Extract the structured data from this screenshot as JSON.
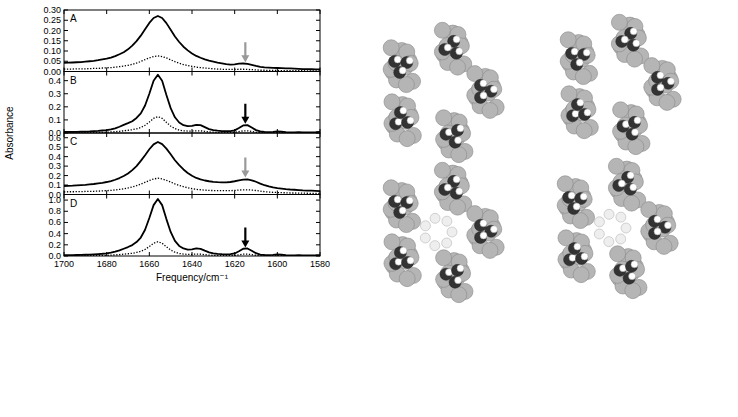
{
  "figure": {
    "ylabel": "Absorbance"
  },
  "chart_data": [
    {
      "type": "line",
      "title": "A",
      "x": [
        1700,
        1698,
        1696,
        1694,
        1692,
        1690,
        1688,
        1686,
        1684,
        1682,
        1680,
        1678,
        1676,
        1674,
        1672,
        1670,
        1668,
        1666,
        1664,
        1662,
        1660,
        1658,
        1656,
        1654,
        1652,
        1650,
        1648,
        1646,
        1644,
        1642,
        1640,
        1638,
        1636,
        1634,
        1632,
        1630,
        1628,
        1626,
        1624,
        1622,
        1620,
        1618,
        1616,
        1614,
        1612,
        1610,
        1608,
        1606,
        1604,
        1602,
        1600,
        1598,
        1596,
        1594,
        1592,
        1590,
        1588,
        1586,
        1584,
        1582,
        1580
      ],
      "xlim": [
        1700,
        1580
      ],
      "xticks": [
        1700,
        1680,
        1660,
        1640,
        1620,
        1600,
        1580
      ],
      "ylim": [
        0,
        0.3
      ],
      "yticks": [
        {
          "value": 0,
          "label": "0.00"
        },
        0.05,
        {
          "value": 0.1,
          "label": "0.10"
        },
        0.15,
        {
          "value": 0.2,
          "label": "0.20"
        },
        0.25,
        {
          "value": 0.3,
          "label": "0.30"
        }
      ],
      "tick_labels": "y",
      "series": [
        {
          "color": "#000000",
          "line_style": "solid",
          "values": [
            0.042,
            0.043,
            0.044,
            0.045,
            0.046,
            0.048,
            0.05,
            0.052,
            0.055,
            0.059,
            0.063,
            0.068,
            0.075,
            0.084,
            0.094,
            0.108,
            0.126,
            0.148,
            0.175,
            0.206,
            0.237,
            0.261,
            0.271,
            0.261,
            0.236,
            0.204,
            0.171,
            0.144,
            0.121,
            0.103,
            0.088,
            0.076,
            0.067,
            0.059,
            0.053,
            0.048,
            0.043,
            0.04,
            0.036,
            0.034,
            0.035,
            0.038,
            0.039,
            0.037,
            0.032,
            0.027,
            0.023,
            0.02,
            0.019,
            0.018,
            0.017,
            0.016,
            0.015,
            0.015,
            0.014,
            0.013,
            0.012,
            0.012,
            0.011,
            0.01,
            0.01
          ]
        },
        {
          "color": "#000000",
          "line_style": "dotted",
          "values": [
            0.012,
            0.012,
            0.012,
            0.013,
            0.013,
            0.013,
            0.014,
            0.015,
            0.015,
            0.017,
            0.018,
            0.019,
            0.021,
            0.024,
            0.026,
            0.03,
            0.035,
            0.041,
            0.049,
            0.058,
            0.066,
            0.073,
            0.076,
            0.073,
            0.066,
            0.057,
            0.048,
            0.04,
            0.034,
            0.029,
            0.025,
            0.021,
            0.019,
            0.017,
            0.015,
            0.013,
            0.012,
            0.011,
            0.01,
            0.01,
            0.01,
            0.011,
            0.011,
            0.01,
            0.009,
            0.008,
            0.006,
            0.006,
            0.005,
            0.005,
            0.005,
            0.004,
            0.004,
            0.004,
            0.004,
            0.004,
            0.004,
            0.003,
            0.003,
            0.003,
            0.003
          ]
        }
      ],
      "arrow": {
        "x": 1615,
        "y": 0.045,
        "color": "#999999"
      }
    },
    {
      "type": "line",
      "title": "B",
      "x": [
        1700,
        1698,
        1696,
        1694,
        1692,
        1690,
        1688,
        1686,
        1684,
        1682,
        1680,
        1678,
        1676,
        1674,
        1672,
        1670,
        1668,
        1666,
        1664,
        1662,
        1660,
        1658,
        1656,
        1654,
        1652,
        1650,
        1648,
        1646,
        1644,
        1642,
        1640,
        1638,
        1636,
        1634,
        1632,
        1630,
        1628,
        1626,
        1624,
        1622,
        1620,
        1618,
        1616,
        1614,
        1612,
        1610,
        1608,
        1606,
        1604,
        1602,
        1600,
        1598,
        1596,
        1594,
        1592,
        1590,
        1588,
        1586,
        1584,
        1582,
        1580
      ],
      "xlim": [
        1700,
        1580
      ],
      "xticks": [
        1700,
        1680,
        1660,
        1640,
        1620,
        1600,
        1580
      ],
      "ylim": [
        0,
        0.47
      ],
      "yticks": [
        {
          "value": 0,
          "label": "0.0"
        },
        0.1,
        0.2,
        0.3,
        0.4
      ],
      "tick_labels": "y",
      "series": [
        {
          "color": "#000000",
          "line_style": "solid",
          "values": [
            0.008,
            0.008,
            0.009,
            0.009,
            0.01,
            0.011,
            0.012,
            0.014,
            0.016,
            0.019,
            0.022,
            0.028,
            0.036,
            0.048,
            0.062,
            0.075,
            0.09,
            0.115,
            0.15,
            0.21,
            0.3,
            0.4,
            0.445,
            0.4,
            0.29,
            0.19,
            0.12,
            0.08,
            0.06,
            0.052,
            0.055,
            0.062,
            0.06,
            0.045,
            0.03,
            0.022,
            0.018,
            0.015,
            0.014,
            0.015,
            0.02,
            0.038,
            0.058,
            0.06,
            0.042,
            0.022,
            0.012,
            0.008,
            0.007,
            0.009,
            0.012,
            0.01,
            0.006,
            0.005,
            0.005,
            0.006,
            0.005,
            0.004,
            0.005,
            0.006,
            0.008
          ]
        },
        {
          "color": "#000000",
          "line_style": "dotted",
          "values": [
            0.002,
            0.002,
            0.003,
            0.003,
            0.003,
            0.003,
            0.003,
            0.004,
            0.004,
            0.005,
            0.006,
            0.008,
            0.01,
            0.013,
            0.017,
            0.021,
            0.025,
            0.032,
            0.042,
            0.059,
            0.084,
            0.112,
            0.125,
            0.112,
            0.081,
            0.053,
            0.034,
            0.022,
            0.017,
            0.015,
            0.015,
            0.017,
            0.017,
            0.013,
            0.008,
            0.006,
            0.005,
            0.004,
            0.004,
            0.004,
            0.006,
            0.011,
            0.016,
            0.017,
            0.012,
            0.006,
            0.003,
            0.002,
            0.002,
            0.003,
            0.003,
            0.003,
            0.002,
            0.001,
            0.001,
            0.001,
            0.001,
            0.001,
            0.001,
            0.002,
            0.002
          ]
        }
      ],
      "arrow": {
        "x": 1615,
        "y": 0.07,
        "color": "#000000"
      }
    },
    {
      "type": "line",
      "title": "C",
      "x": [
        1700,
        1698,
        1696,
        1694,
        1692,
        1690,
        1688,
        1686,
        1684,
        1682,
        1680,
        1678,
        1676,
        1674,
        1672,
        1670,
        1668,
        1666,
        1664,
        1662,
        1660,
        1658,
        1656,
        1654,
        1652,
        1650,
        1648,
        1646,
        1644,
        1642,
        1640,
        1638,
        1636,
        1634,
        1632,
        1630,
        1628,
        1626,
        1624,
        1622,
        1620,
        1618,
        1616,
        1614,
        1612,
        1610,
        1608,
        1606,
        1604,
        1602,
        1600,
        1598,
        1596,
        1594,
        1592,
        1590,
        1588,
        1586,
        1584,
        1582,
        1580
      ],
      "xlim": [
        1700,
        1580
      ],
      "xticks": [
        1700,
        1680,
        1660,
        1640,
        1620,
        1600,
        1580
      ],
      "ylim": [
        0,
        0.65
      ],
      "yticks": [
        {
          "value": 0,
          "label": "0.0"
        },
        0.1,
        0.2,
        0.3,
        0.4,
        0.5,
        0.6
      ],
      "tick_labels": "y",
      "series": [
        {
          "color": "#000000",
          "line_style": "solid",
          "values": [
            0.09,
            0.092,
            0.094,
            0.097,
            0.099,
            0.102,
            0.106,
            0.111,
            0.117,
            0.124,
            0.132,
            0.142,
            0.156,
            0.174,
            0.195,
            0.222,
            0.258,
            0.3,
            0.355,
            0.415,
            0.478,
            0.53,
            0.555,
            0.533,
            0.485,
            0.425,
            0.362,
            0.31,
            0.265,
            0.228,
            0.198,
            0.175,
            0.16,
            0.148,
            0.14,
            0.134,
            0.13,
            0.128,
            0.128,
            0.132,
            0.14,
            0.15,
            0.158,
            0.16,
            0.15,
            0.135,
            0.115,
            0.098,
            0.085,
            0.075,
            0.068,
            0.062,
            0.057,
            0.053,
            0.05,
            0.047,
            0.044,
            0.042,
            0.04,
            0.038,
            0.036
          ]
        },
        {
          "color": "#000000",
          "line_style": "dotted",
          "values": [
            0.028,
            0.029,
            0.029,
            0.03,
            0.031,
            0.032,
            0.033,
            0.034,
            0.036,
            0.038,
            0.041,
            0.044,
            0.048,
            0.054,
            0.06,
            0.069,
            0.08,
            0.093,
            0.11,
            0.129,
            0.148,
            0.164,
            0.172,
            0.165,
            0.15,
            0.132,
            0.112,
            0.096,
            0.082,
            0.071,
            0.061,
            0.054,
            0.05,
            0.046,
            0.043,
            0.042,
            0.04,
            0.04,
            0.04,
            0.041,
            0.043,
            0.047,
            0.049,
            0.05,
            0.047,
            0.042,
            0.036,
            0.03,
            0.026,
            0.023,
            0.021,
            0.019,
            0.018,
            0.016,
            0.016,
            0.015,
            0.014,
            0.013,
            0.012,
            0.012,
            0.011
          ]
        }
      ],
      "arrow": {
        "x": 1615,
        "y": 0.18,
        "color": "#999999"
      }
    },
    {
      "type": "line",
      "title": "D",
      "x": [
        1700,
        1698,
        1696,
        1694,
        1692,
        1690,
        1688,
        1686,
        1684,
        1682,
        1680,
        1678,
        1676,
        1674,
        1672,
        1670,
        1668,
        1666,
        1664,
        1662,
        1660,
        1658,
        1656,
        1654,
        1652,
        1650,
        1648,
        1646,
        1644,
        1642,
        1640,
        1638,
        1636,
        1634,
        1632,
        1630,
        1628,
        1626,
        1624,
        1622,
        1620,
        1618,
        1616,
        1614,
        1612,
        1610,
        1608,
        1606,
        1604,
        1602,
        1600,
        1598,
        1596,
        1594,
        1592,
        1590,
        1588,
        1586,
        1584,
        1582,
        1580
      ],
      "xlim": [
        1700,
        1580
      ],
      "xticks": [
        1700,
        1680,
        1660,
        1640,
        1620,
        1600,
        1580
      ],
      "xlabel": "Frequency/cm⁻¹",
      "ylim": [
        0,
        1.1
      ],
      "yticks": [
        {
          "value": 0,
          "label": "0.0"
        },
        0.2,
        0.4,
        0.6,
        0.8,
        {
          "value": 1,
          "label": "1.0"
        }
      ],
      "series": [
        {
          "color": "#000000",
          "line_style": "solid",
          "values": [
            0.015,
            0.016,
            0.017,
            0.018,
            0.02,
            0.022,
            0.025,
            0.029,
            0.034,
            0.04,
            0.048,
            0.06,
            0.078,
            0.1,
            0.13,
            0.16,
            0.195,
            0.25,
            0.33,
            0.47,
            0.68,
            0.91,
            1.02,
            0.91,
            0.66,
            0.43,
            0.27,
            0.18,
            0.135,
            0.115,
            0.12,
            0.135,
            0.128,
            0.095,
            0.065,
            0.048,
            0.038,
            0.032,
            0.03,
            0.033,
            0.045,
            0.085,
            0.13,
            0.135,
            0.095,
            0.05,
            0.026,
            0.018,
            0.016,
            0.02,
            0.028,
            0.022,
            0.014,
            0.011,
            0.011,
            0.013,
            0.011,
            0.009,
            0.011,
            0.013,
            0.017
          ]
        },
        {
          "color": "#000000",
          "line_style": "dotted",
          "values": [
            0.004,
            0.004,
            0.004,
            0.005,
            0.005,
            0.006,
            0.006,
            0.007,
            0.009,
            0.01,
            0.012,
            0.015,
            0.02,
            0.025,
            0.033,
            0.04,
            0.049,
            0.063,
            0.083,
            0.118,
            0.17,
            0.228,
            0.255,
            0.228,
            0.165,
            0.108,
            0.068,
            0.045,
            0.034,
            0.029,
            0.03,
            0.034,
            0.032,
            0.024,
            0.016,
            0.012,
            0.01,
            0.008,
            0.008,
            0.008,
            0.011,
            0.021,
            0.033,
            0.034,
            0.024,
            0.013,
            0.007,
            0.005,
            0.004,
            0.005,
            0.007,
            0.006,
            0.004,
            0.003,
            0.003,
            0.003,
            0.003,
            0.002,
            0.003,
            0.003,
            0.004
          ]
        }
      ],
      "arrow": {
        "x": 1615,
        "y": 0.15,
        "color": "#000000"
      }
    }
  ]
}
